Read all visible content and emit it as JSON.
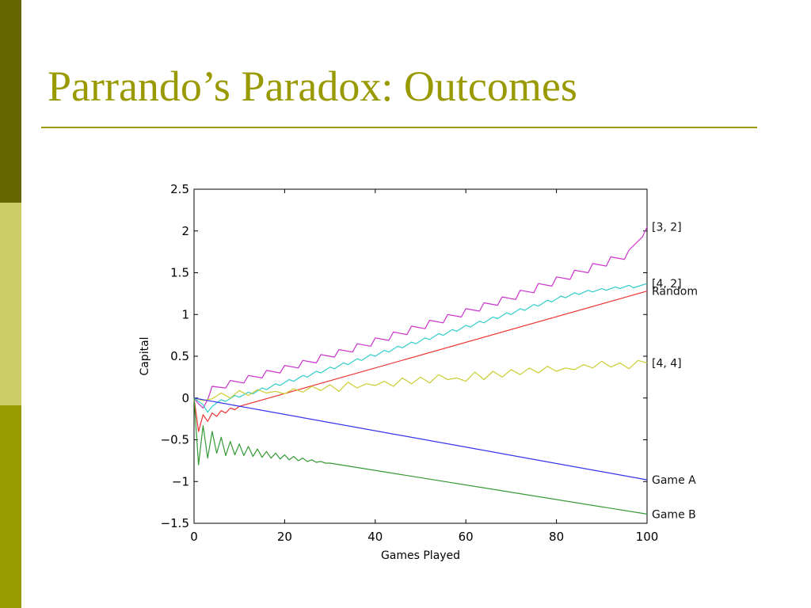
{
  "slide": {
    "title": "Parrando’s Paradox: Outcomes"
  },
  "chart_data": {
    "type": "line",
    "xlabel": "Games Played",
    "ylabel": "Capital",
    "xlim": [
      0,
      100
    ],
    "ylim": [
      -1.5,
      2.5
    ],
    "xticks": [
      "0",
      "20",
      "40",
      "60",
      "80",
      "100"
    ],
    "yticks": [
      "2.5",
      "2",
      "1.5",
      "1",
      "0.5",
      "0",
      "−0.5",
      "−1",
      "−1.5"
    ],
    "grid": false,
    "series": [
      {
        "name": "[3, 2]",
        "color": "#cc33cc",
        "x": [
          0,
          1,
          2,
          3,
          4,
          7,
          8,
          11,
          12,
          15,
          16,
          19,
          20,
          23,
          24,
          27,
          28,
          31,
          32,
          35,
          36,
          39,
          40,
          43,
          44,
          47,
          48,
          51,
          52,
          55,
          56,
          59,
          60,
          63,
          64,
          67,
          68,
          71,
          72,
          75,
          76,
          79,
          80,
          83,
          84,
          87,
          88,
          91,
          92,
          95,
          96,
          99,
          100
        ],
        "y": [
          0,
          -0.07,
          -0.12,
          -0.02,
          0.14,
          0.12,
          0.21,
          0.18,
          0.27,
          0.24,
          0.33,
          0.3,
          0.39,
          0.36,
          0.45,
          0.42,
          0.52,
          0.49,
          0.58,
          0.55,
          0.65,
          0.62,
          0.72,
          0.69,
          0.79,
          0.76,
          0.86,
          0.83,
          0.93,
          0.9,
          1.0,
          0.97,
          1.07,
          1.04,
          1.14,
          1.11,
          1.21,
          1.18,
          1.29,
          1.26,
          1.37,
          1.34,
          1.45,
          1.42,
          1.53,
          1.5,
          1.61,
          1.58,
          1.69,
          1.66,
          1.77,
          1.93,
          2.05
        ]
      },
      {
        "name": "[4, 2]",
        "color": "#33cccc",
        "x": [
          0,
          2,
          3,
          4,
          6,
          7,
          9,
          10,
          12,
          13,
          15,
          16,
          18,
          19,
          21,
          22,
          24,
          25,
          27,
          28,
          30,
          31,
          33,
          34,
          36,
          37,
          39,
          40,
          42,
          43,
          45,
          46,
          48,
          49,
          51,
          52,
          54,
          55,
          57,
          58,
          60,
          61,
          63,
          64,
          66,
          67,
          69,
          70,
          72,
          73,
          75,
          76,
          78,
          79,
          81,
          82,
          84,
          85,
          87,
          88,
          90,
          91,
          93,
          94,
          96,
          97,
          100
        ],
        "y": [
          0,
          -0.08,
          -0.17,
          -0.1,
          -0.02,
          -0.04,
          0.03,
          0.01,
          0.07,
          0.05,
          0.12,
          0.1,
          0.17,
          0.15,
          0.22,
          0.2,
          0.27,
          0.25,
          0.32,
          0.3,
          0.37,
          0.35,
          0.42,
          0.4,
          0.47,
          0.45,
          0.52,
          0.5,
          0.57,
          0.55,
          0.62,
          0.6,
          0.67,
          0.65,
          0.72,
          0.7,
          0.77,
          0.75,
          0.82,
          0.8,
          0.87,
          0.85,
          0.92,
          0.9,
          0.97,
          0.95,
          1.02,
          1.0,
          1.07,
          1.05,
          1.12,
          1.1,
          1.17,
          1.15,
          1.22,
          1.2,
          1.26,
          1.24,
          1.29,
          1.27,
          1.31,
          1.29,
          1.33,
          1.31,
          1.35,
          1.32,
          1.37
        ]
      },
      {
        "name": "Random",
        "color": "#ee3333",
        "x": [
          0,
          1,
          2,
          3,
          4,
          5,
          6,
          7,
          8,
          9,
          10,
          100
        ],
        "y": [
          0,
          -0.4,
          -0.2,
          -0.28,
          -0.18,
          -0.22,
          -0.15,
          -0.18,
          -0.12,
          -0.14,
          -0.1,
          1.28
        ]
      },
      {
        "name": "[4, 4]",
        "color": "#cccc33",
        "x": [
          0,
          2,
          4,
          6,
          8,
          10,
          12,
          14,
          16,
          18,
          20,
          22,
          24,
          26,
          28,
          30,
          32,
          34,
          36,
          38,
          40,
          42,
          44,
          46,
          48,
          50,
          52,
          54,
          56,
          58,
          60,
          62,
          64,
          66,
          68,
          70,
          72,
          74,
          76,
          78,
          80,
          82,
          84,
          86,
          88,
          90,
          92,
          94,
          96,
          98,
          100
        ],
        "y": [
          0,
          -0.03,
          -0.01,
          0.06,
          0.0,
          0.09,
          0.03,
          0.1,
          0.06,
          0.08,
          0.05,
          0.11,
          0.07,
          0.14,
          0.09,
          0.16,
          0.08,
          0.19,
          0.12,
          0.17,
          0.15,
          0.2,
          0.14,
          0.24,
          0.17,
          0.25,
          0.18,
          0.28,
          0.22,
          0.24,
          0.2,
          0.31,
          0.22,
          0.32,
          0.25,
          0.34,
          0.28,
          0.36,
          0.3,
          0.38,
          0.32,
          0.36,
          0.34,
          0.4,
          0.36,
          0.44,
          0.37,
          0.42,
          0.35,
          0.45,
          0.42
        ]
      },
      {
        "name": "Game A",
        "color": "#3333ee",
        "x": [
          0,
          100
        ],
        "y": [
          0,
          -0.98
        ]
      },
      {
        "name": "Game B",
        "color": "#339933",
        "x": [
          0,
          1,
          2,
          3,
          4,
          5,
          6,
          7,
          8,
          9,
          10,
          11,
          12,
          13,
          14,
          15,
          16,
          17,
          18,
          19,
          20,
          21,
          22,
          23,
          24,
          25,
          26,
          27,
          28,
          29,
          30,
          100
        ],
        "y": [
          0,
          -0.8,
          -0.33,
          -0.72,
          -0.4,
          -0.66,
          -0.47,
          -0.69,
          -0.52,
          -0.68,
          -0.55,
          -0.69,
          -0.58,
          -0.7,
          -0.61,
          -0.71,
          -0.64,
          -0.72,
          -0.66,
          -0.73,
          -0.68,
          -0.74,
          -0.7,
          -0.75,
          -0.72,
          -0.76,
          -0.74,
          -0.77,
          -0.76,
          -0.78,
          -0.78,
          -1.39
        ]
      }
    ]
  }
}
